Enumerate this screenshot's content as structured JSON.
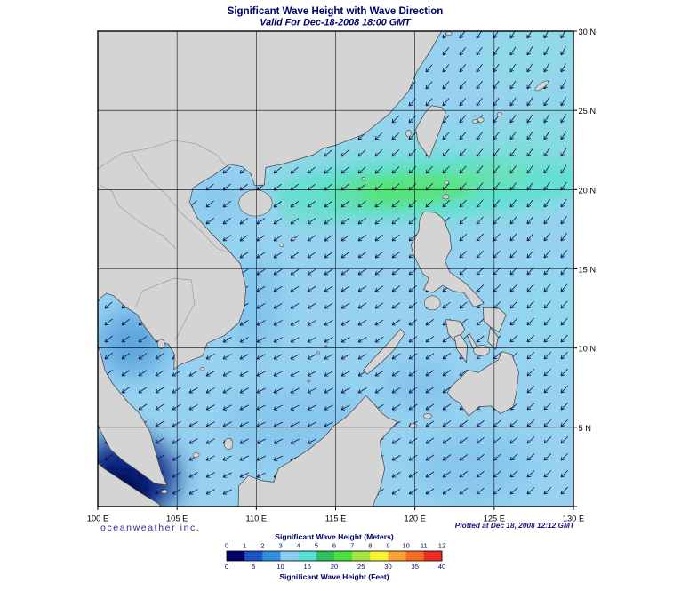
{
  "title": "Significant Wave Height with Wave Direction",
  "subtitle": "Valid For Dec-18-2008 18:00 GMT",
  "branding": "oceanweather inc.",
  "plotted_at": "Plotted at Dec 18, 2008 12:12 GMT",
  "axes": {
    "lon_ticks": [
      "100 E",
      "105 E",
      "110 E",
      "115 E",
      "120 E",
      "125 E",
      "130 E"
    ],
    "lat_ticks": [
      "30 N",
      "25 N",
      "20 N",
      "15 N",
      "10 N",
      "5 N"
    ],
    "lon_range_deg_e": [
      100,
      130
    ],
    "lat_range_deg_n": [
      0,
      30
    ],
    "grid_step_deg": 5
  },
  "colorbar": {
    "title_meters": "Significant Wave Height (Meters)",
    "title_feet": "Significant Wave Height (Feet)",
    "meter_ticks": [
      0,
      1,
      2,
      3,
      4,
      5,
      6,
      7,
      8,
      9,
      10,
      11,
      12
    ],
    "feet_ticks": [
      0,
      5,
      10,
      15,
      20,
      25,
      30,
      35,
      40
    ],
    "colors": [
      "#00006b",
      "#1a52c8",
      "#2f8fdc",
      "#86cdf1",
      "#55e0d4",
      "#2fbf5f",
      "#4ae03c",
      "#a4e53c",
      "#f8f432",
      "#fba32e",
      "#f96a21",
      "#ee2c23"
    ]
  },
  "colors": {
    "title": "#00006e",
    "axis_text": "#000000",
    "branding": "#2b2b9e",
    "plotted": "#15157e",
    "ocean": "#96d2f0",
    "land": "#d4d4d4",
    "coast": "#3f3f3f",
    "border": "#8f8f8f",
    "grid": "#000000",
    "arrow": "#10104a",
    "frame": "#000000",
    "bar_text": "#0a0a5a"
  },
  "chart_data": {
    "type": "heatmap",
    "title": "Significant Wave Height with Wave Direction",
    "valid_time": "Dec-18-2008 18:00 GMT",
    "plotted_time": "Dec 18, 2008 12:12 GMT",
    "variable": "Significant Wave Height",
    "units_primary": "Meters",
    "units_secondary": "Feet",
    "scale_meters": [
      0,
      1,
      2,
      3,
      4,
      5,
      6,
      7,
      8,
      9,
      10,
      11,
      12
    ],
    "scale_feet": [
      0,
      5,
      10,
      15,
      20,
      25,
      30,
      35,
      40
    ],
    "palette": [
      "#00006b",
      "#1a52c8",
      "#2f8fdc",
      "#86cdf1",
      "#55e0d4",
      "#2fbf5f",
      "#4ae03c",
      "#a4e53c",
      "#f8f432",
      "#fba32e",
      "#f96a21",
      "#ee2c23"
    ],
    "lon_range_deg_e": [
      100,
      130
    ],
    "lat_range_deg_n": [
      0,
      30
    ],
    "region": "South China Sea, Philippine Sea, Gulf of Thailand, East China Sea",
    "wave_direction": "arrows point toward the southwest (northeast monsoon swell)",
    "features": [
      {
        "name": "peak-wave-band",
        "value_m": "4-5",
        "desc": "cyan-green band of highest seas along 19-21 N from the central South China Sea through the Luzon Strait into the Philippine Sea"
      },
      {
        "name": "moderate-seas",
        "value_m": "1.5-2.5",
        "desc": "light blue seas over most of the South China Sea and Philippine Sea"
      },
      {
        "name": "calm-area",
        "value_m": "0-1",
        "desc": "dark navy near-calm seas near the Malacca Strait and Sumatra coast"
      },
      {
        "name": "gulf-of-thailand",
        "value_m": "1-2",
        "desc": "medium blue seas in the Gulf of Thailand"
      }
    ]
  }
}
